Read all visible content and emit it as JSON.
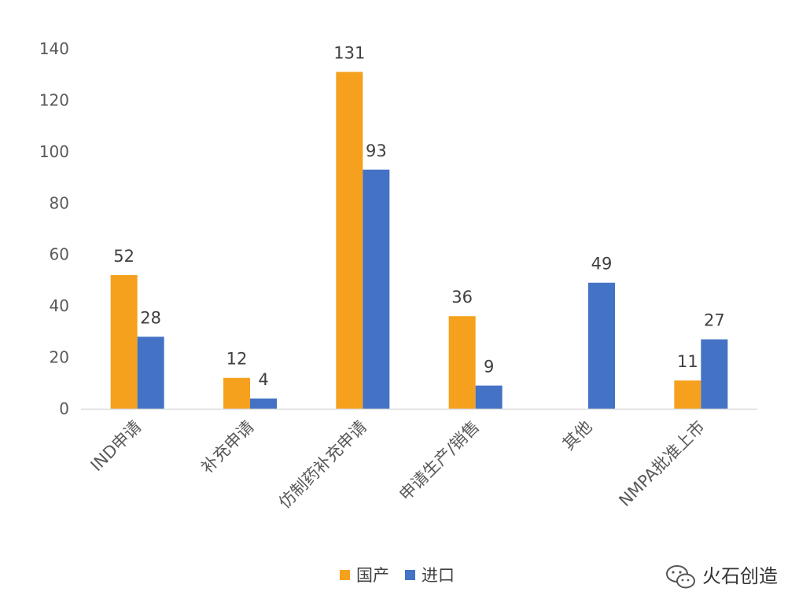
{
  "chart_data": {
    "type": "bar",
    "categories": [
      "IND申请",
      "补充申请",
      "仿制药补充申请",
      "申请生产/销售",
      "其他",
      "NMPA批准上市"
    ],
    "series": [
      {
        "name": "国产",
        "values": [
          52,
          12,
          131,
          36,
          null,
          11
        ],
        "color": "#F5A11D"
      },
      {
        "name": "进口",
        "values": [
          28,
          4,
          93,
          9,
          49,
          27
        ],
        "color": "#4472C4"
      }
    ],
    "ylim": [
      0,
      140
    ],
    "yticks": [
      0,
      20,
      40,
      60,
      80,
      100,
      120,
      140
    ],
    "grid": false,
    "legend_position": "bottom",
    "data_labels": true
  },
  "watermark": {
    "text": "火石创造",
    "icon": "wechat-icon"
  }
}
